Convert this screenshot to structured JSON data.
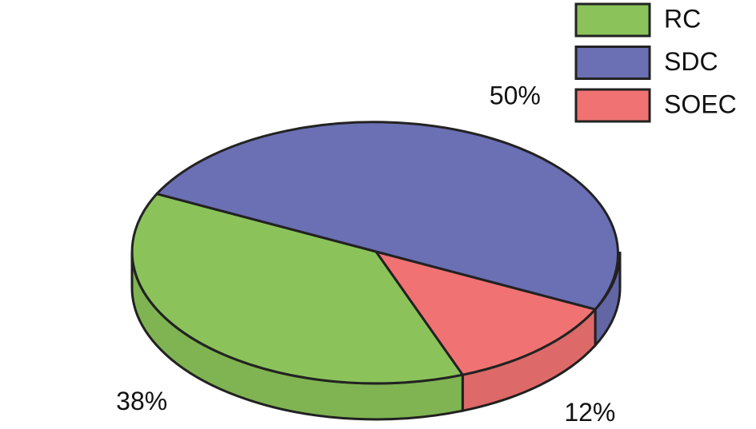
{
  "chart_data": {
    "type": "pie",
    "categories": [
      "RC",
      "SDC",
      "SOEC"
    ],
    "values": [
      38,
      50,
      12
    ],
    "value_labels": [
      "38%",
      "50%",
      "12%"
    ],
    "colors": [
      "#8bc35a",
      "#6b6fb3",
      "#f07272"
    ],
    "legend": "top-right"
  }
}
